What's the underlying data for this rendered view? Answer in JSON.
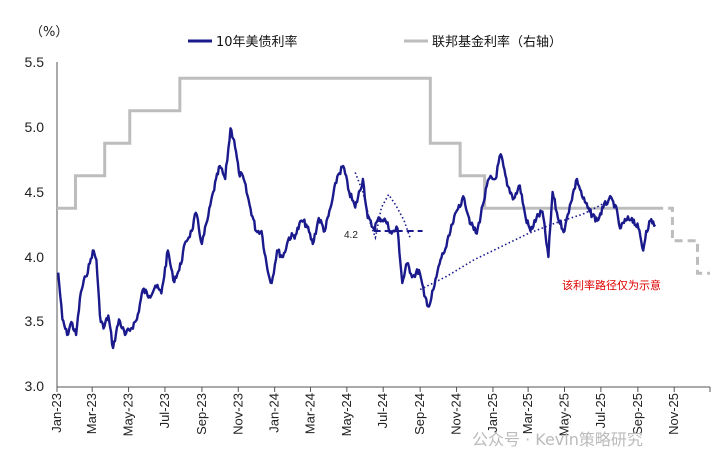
{
  "chart_data": {
    "type": "line",
    "unit_label": "（%）",
    "y_ticks": [
      "5.5",
      "5.0",
      "4.5",
      "4.0",
      "3.5",
      "3.0"
    ],
    "ylim": [
      3.0,
      5.5
    ],
    "x_ticks": [
      "Jan-23",
      "Mar-23",
      "May-23",
      "Jul-23",
      "Sep-23",
      "Nov-23",
      "Jan-24",
      "Mar-24",
      "May-24",
      "Jul-24",
      "Sep-24",
      "Nov-24",
      "Jan-25",
      "Mar-25",
      "May-25",
      "Jul-25",
      "Sep-25",
      "Nov-25"
    ],
    "xlim": [
      "2023-01-01",
      "2025-12-31"
    ],
    "legend": {
      "position": "top",
      "items": [
        "10年美债利率",
        "联邦基金利率（右轴）"
      ]
    },
    "series": [
      {
        "name": "10年美债利率",
        "color": "#1a1a8c",
        "points": [
          [
            "2023-01-03",
            3.88
          ],
          [
            "2023-01-10",
            3.52
          ],
          [
            "2023-01-18",
            3.4
          ],
          [
            "2023-01-25",
            3.5
          ],
          [
            "2023-02-02",
            3.4
          ],
          [
            "2023-02-10",
            3.73
          ],
          [
            "2023-02-18",
            3.85
          ],
          [
            "2023-02-25",
            3.95
          ],
          [
            "2023-03-02",
            4.05
          ],
          [
            "2023-03-08",
            3.98
          ],
          [
            "2023-03-14",
            3.55
          ],
          [
            "2023-03-20",
            3.45
          ],
          [
            "2023-03-28",
            3.55
          ],
          [
            "2023-04-05",
            3.3
          ],
          [
            "2023-04-15",
            3.52
          ],
          [
            "2023-04-25",
            3.4
          ],
          [
            "2023-05-05",
            3.45
          ],
          [
            "2023-05-15",
            3.52
          ],
          [
            "2023-05-25",
            3.75
          ],
          [
            "2023-06-05",
            3.7
          ],
          [
            "2023-06-15",
            3.78
          ],
          [
            "2023-06-25",
            3.72
          ],
          [
            "2023-07-06",
            4.05
          ],
          [
            "2023-07-15",
            3.82
          ],
          [
            "2023-07-25",
            3.9
          ],
          [
            "2023-08-05",
            4.12
          ],
          [
            "2023-08-15",
            4.2
          ],
          [
            "2023-08-22",
            4.34
          ],
          [
            "2023-09-01",
            4.1
          ],
          [
            "2023-09-10",
            4.28
          ],
          [
            "2023-09-20",
            4.5
          ],
          [
            "2023-10-01",
            4.7
          ],
          [
            "2023-10-10",
            4.6
          ],
          [
            "2023-10-19",
            4.99
          ],
          [
            "2023-10-25",
            4.9
          ],
          [
            "2023-11-02",
            4.65
          ],
          [
            "2023-11-10",
            4.6
          ],
          [
            "2023-11-20",
            4.4
          ],
          [
            "2023-12-01",
            4.2
          ],
          [
            "2023-12-10",
            4.2
          ],
          [
            "2023-12-20",
            3.9
          ],
          [
            "2023-12-27",
            3.8
          ],
          [
            "2024-01-05",
            4.05
          ],
          [
            "2024-01-15",
            4.0
          ],
          [
            "2024-01-25",
            4.15
          ],
          [
            "2024-02-05",
            4.17
          ],
          [
            "2024-02-15",
            4.28
          ],
          [
            "2024-02-23",
            4.25
          ],
          [
            "2024-03-05",
            4.1
          ],
          [
            "2024-03-15",
            4.3
          ],
          [
            "2024-03-25",
            4.2
          ],
          [
            "2024-04-05",
            4.4
          ],
          [
            "2024-04-15",
            4.62
          ],
          [
            "2024-04-25",
            4.7
          ],
          [
            "2024-05-05",
            4.5
          ],
          [
            "2024-05-15",
            4.38
          ],
          [
            "2024-05-28",
            4.6
          ],
          [
            "2024-06-05",
            4.3
          ],
          [
            "2024-06-15",
            4.22
          ],
          [
            "2024-06-25",
            4.3
          ],
          [
            "2024-07-05",
            4.28
          ],
          [
            "2024-07-15",
            4.18
          ],
          [
            "2024-07-25",
            4.22
          ],
          [
            "2024-08-02",
            3.8
          ],
          [
            "2024-08-10",
            3.95
          ],
          [
            "2024-08-20",
            3.85
          ],
          [
            "2024-08-30",
            3.9
          ],
          [
            "2024-09-08",
            3.7
          ],
          [
            "2024-09-16",
            3.62
          ],
          [
            "2024-09-25",
            3.78
          ],
          [
            "2024-10-05",
            3.98
          ],
          [
            "2024-10-15",
            4.08
          ],
          [
            "2024-10-25",
            4.25
          ],
          [
            "2024-11-05",
            4.4
          ],
          [
            "2024-11-14",
            4.45
          ],
          [
            "2024-11-25",
            4.25
          ],
          [
            "2024-12-05",
            4.18
          ],
          [
            "2024-12-15",
            4.4
          ],
          [
            "2024-12-25",
            4.6
          ],
          [
            "2025-01-05",
            4.6
          ],
          [
            "2025-01-14",
            4.79
          ],
          [
            "2025-01-25",
            4.55
          ],
          [
            "2025-02-05",
            4.45
          ],
          [
            "2025-02-15",
            4.55
          ],
          [
            "2025-02-25",
            4.3
          ],
          [
            "2025-03-05",
            4.2
          ],
          [
            "2025-03-15",
            4.3
          ],
          [
            "2025-03-25",
            4.35
          ],
          [
            "2025-04-04",
            4.0
          ],
          [
            "2025-04-11",
            4.5
          ],
          [
            "2025-04-20",
            4.3
          ],
          [
            "2025-05-01",
            4.2
          ],
          [
            "2025-05-10",
            4.4
          ],
          [
            "2025-05-22",
            4.6
          ],
          [
            "2025-06-01",
            4.45
          ],
          [
            "2025-06-12",
            4.35
          ],
          [
            "2025-06-25",
            4.28
          ],
          [
            "2025-07-05",
            4.38
          ],
          [
            "2025-07-15",
            4.45
          ],
          [
            "2025-07-25",
            4.4
          ],
          [
            "2025-08-02",
            4.22
          ],
          [
            "2025-08-12",
            4.28
          ],
          [
            "2025-08-22",
            4.3
          ],
          [
            "2025-09-02",
            4.22
          ],
          [
            "2025-09-10",
            4.05
          ],
          [
            "2025-09-15",
            4.2
          ],
          [
            "2025-09-22",
            4.28
          ],
          [
            "2025-09-30",
            4.25
          ]
        ]
      },
      {
        "name": "联邦基金利率（右轴）",
        "color": "#bdbdbd",
        "steps": [
          [
            "2023-01-01",
            4.375
          ],
          [
            "2023-02-01",
            4.625
          ],
          [
            "2023-03-22",
            4.875
          ],
          [
            "2023-05-03",
            5.125
          ],
          [
            "2023-07-26",
            5.375
          ],
          [
            "2024-09-18",
            4.875
          ],
          [
            "2024-11-07",
            4.625
          ],
          [
            "2024-12-18",
            4.375
          ],
          [
            "2025-09-30",
            4.375
          ]
        ],
        "projection": [
          [
            "2025-09-30",
            4.375
          ],
          [
            "2025-10-29",
            4.125
          ],
          [
            "2025-12-10",
            3.875
          ],
          [
            "2025-12-31",
            3.875
          ]
        ]
      }
    ],
    "annotations": {
      "label_42": "4.2",
      "dashed_level": {
        "from": "2024-06-15",
        "to": "2024-09-05",
        "value": 4.2
      },
      "dotted_paths": [
        [
          [
            "2024-05-15",
            4.65
          ],
          [
            "2024-05-28",
            4.5
          ],
          [
            "2024-06-10",
            4.25
          ],
          [
            "2024-06-18",
            4.15
          ],
          [
            "2024-06-28",
            4.38
          ],
          [
            "2024-07-10",
            4.48
          ],
          [
            "2024-07-22",
            4.4
          ],
          [
            "2024-08-05",
            4.28
          ],
          [
            "2024-08-15",
            4.15
          ]
        ],
        [
          [
            "2024-09-01",
            3.75
          ],
          [
            "2024-10-15",
            3.85
          ],
          [
            "2024-12-01",
            3.98
          ],
          [
            "2025-01-15",
            4.08
          ],
          [
            "2025-03-01",
            4.18
          ],
          [
            "2025-04-15",
            4.26
          ],
          [
            "2025-06-01",
            4.33
          ],
          [
            "2025-07-01",
            4.4
          ],
          [
            "2025-07-20",
            4.45
          ]
        ]
      ],
      "note": "该利率路径仅为示意"
    },
    "watermark": "公众号 · Kevin策略研究"
  }
}
